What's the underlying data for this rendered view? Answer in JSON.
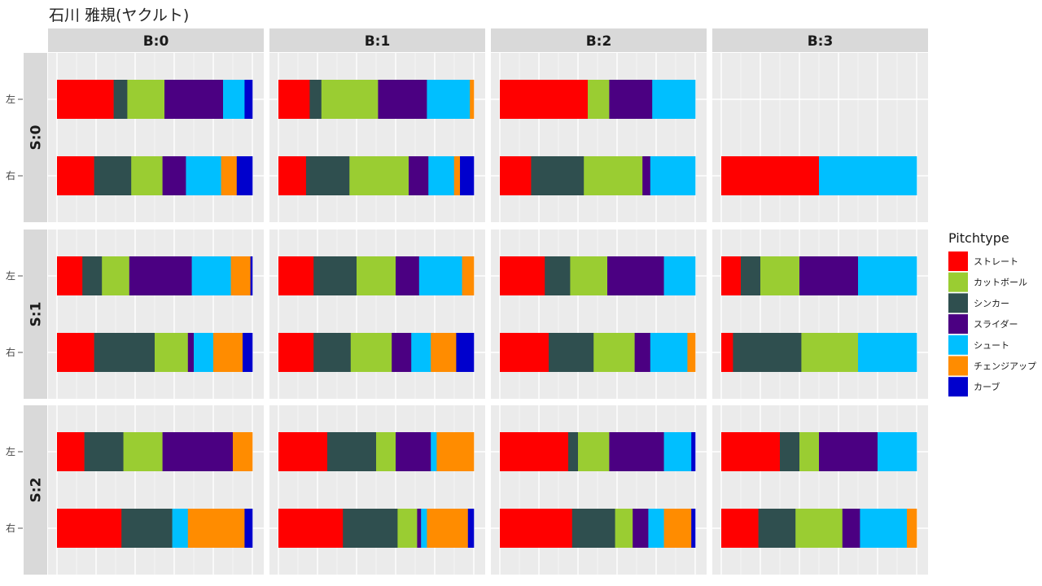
{
  "title": "石川 雅規(ヤクルト)",
  "chart_data": {
    "type": "bar",
    "orientation": "horizontal",
    "stacked": true,
    "normalized": true,
    "title": "石川 雅規(ヤクルト)",
    "facet_columns": [
      "B:0",
      "B:1",
      "B:2",
      "B:3"
    ],
    "facet_rows": [
      "S:0",
      "S:1",
      "S:2"
    ],
    "categories": [
      "左",
      "右"
    ],
    "legend": {
      "title": "Pitchtype",
      "position": "right",
      "entries": [
        {
          "name": "ストレート",
          "color": "#ff0000"
        },
        {
          "name": "カットボール",
          "color": "#9acd32"
        },
        {
          "name": "シンカー",
          "color": "#2f4f4f"
        },
        {
          "name": "スライダー",
          "color": "#4b0082"
        },
        {
          "name": "シュート",
          "color": "#00bfff"
        },
        {
          "name": "チェンジアップ",
          "color": "#ff8c00"
        },
        {
          "name": "カーブ",
          "color": "#0000cd"
        }
      ]
    },
    "stack_order": [
      "ストレート",
      "シンカー",
      "カットボール",
      "スライダー",
      "シュート",
      "チェンジアップ",
      "カーブ"
    ],
    "panels": [
      {
        "strike": "S:0",
        "ball": "B:0",
        "bars": {
          "左": [
            0.29,
            0.07,
            0.19,
            0.3,
            0.11,
            0.0,
            0.04
          ],
          "右": [
            0.19,
            0.19,
            0.16,
            0.12,
            0.18,
            0.08,
            0.08
          ]
        }
      },
      {
        "strike": "S:0",
        "ball": "B:1",
        "bars": {
          "左": [
            0.16,
            0.06,
            0.29,
            0.25,
            0.22,
            0.02,
            0.0
          ],
          "右": [
            0.14,
            0.22,
            0.3,
            0.1,
            0.13,
            0.03,
            0.07
          ]
        }
      },
      {
        "strike": "S:0",
        "ball": "B:2",
        "bars": {
          "左": [
            0.45,
            0.0,
            0.11,
            0.22,
            0.22,
            0.0,
            0.0
          ],
          "右": [
            0.16,
            0.27,
            0.3,
            0.04,
            0.23,
            0.0,
            0.0
          ]
        }
      },
      {
        "strike": "S:0",
        "ball": "B:3",
        "bars": {
          "左": null,
          "右": [
            0.5,
            0.0,
            0.0,
            0.0,
            0.5,
            0.0,
            0.0
          ]
        }
      },
      {
        "strike": "S:1",
        "ball": "B:0",
        "bars": {
          "左": [
            0.13,
            0.1,
            0.14,
            0.32,
            0.2,
            0.1,
            0.01
          ],
          "右": [
            0.19,
            0.31,
            0.17,
            0.03,
            0.1,
            0.15,
            0.05
          ]
        }
      },
      {
        "strike": "S:1",
        "ball": "B:1",
        "bars": {
          "左": [
            0.18,
            0.22,
            0.2,
            0.12,
            0.22,
            0.06,
            0.0
          ],
          "右": [
            0.18,
            0.19,
            0.21,
            0.1,
            0.1,
            0.13,
            0.09
          ]
        }
      },
      {
        "strike": "S:1",
        "ball": "B:2",
        "bars": {
          "左": [
            0.23,
            0.13,
            0.19,
            0.29,
            0.16,
            0.0,
            0.0
          ],
          "右": [
            0.25,
            0.23,
            0.21,
            0.08,
            0.19,
            0.04,
            0.0
          ]
        }
      },
      {
        "strike": "S:1",
        "ball": "B:3",
        "bars": {
          "左": [
            0.1,
            0.1,
            0.2,
            0.3,
            0.3,
            0.0,
            0.0
          ],
          "右": [
            0.06,
            0.35,
            0.29,
            0.0,
            0.3,
            0.0,
            0.0
          ]
        }
      },
      {
        "strike": "S:2",
        "ball": "B:0",
        "bars": {
          "左": [
            0.14,
            0.2,
            0.2,
            0.36,
            0.0,
            0.1,
            0.0
          ],
          "右": [
            0.33,
            0.26,
            0.0,
            0.0,
            0.08,
            0.29,
            0.04
          ]
        }
      },
      {
        "strike": "S:2",
        "ball": "B:1",
        "bars": {
          "左": [
            0.25,
            0.25,
            0.1,
            0.18,
            0.03,
            0.19,
            0.0
          ],
          "右": [
            0.33,
            0.28,
            0.1,
            0.02,
            0.03,
            0.21,
            0.03
          ]
        }
      },
      {
        "strike": "S:2",
        "ball": "B:2",
        "bars": {
          "左": [
            0.35,
            0.05,
            0.16,
            0.28,
            0.14,
            0.0,
            0.02
          ],
          "右": [
            0.37,
            0.22,
            0.09,
            0.08,
            0.08,
            0.14,
            0.02
          ]
        }
      },
      {
        "strike": "S:2",
        "ball": "B:3",
        "bars": {
          "左": [
            0.3,
            0.1,
            0.1,
            0.3,
            0.2,
            0.0,
            0.0
          ],
          "右": [
            0.19,
            0.19,
            0.24,
            0.09,
            0.24,
            0.05,
            0.0
          ]
        }
      }
    ]
  }
}
